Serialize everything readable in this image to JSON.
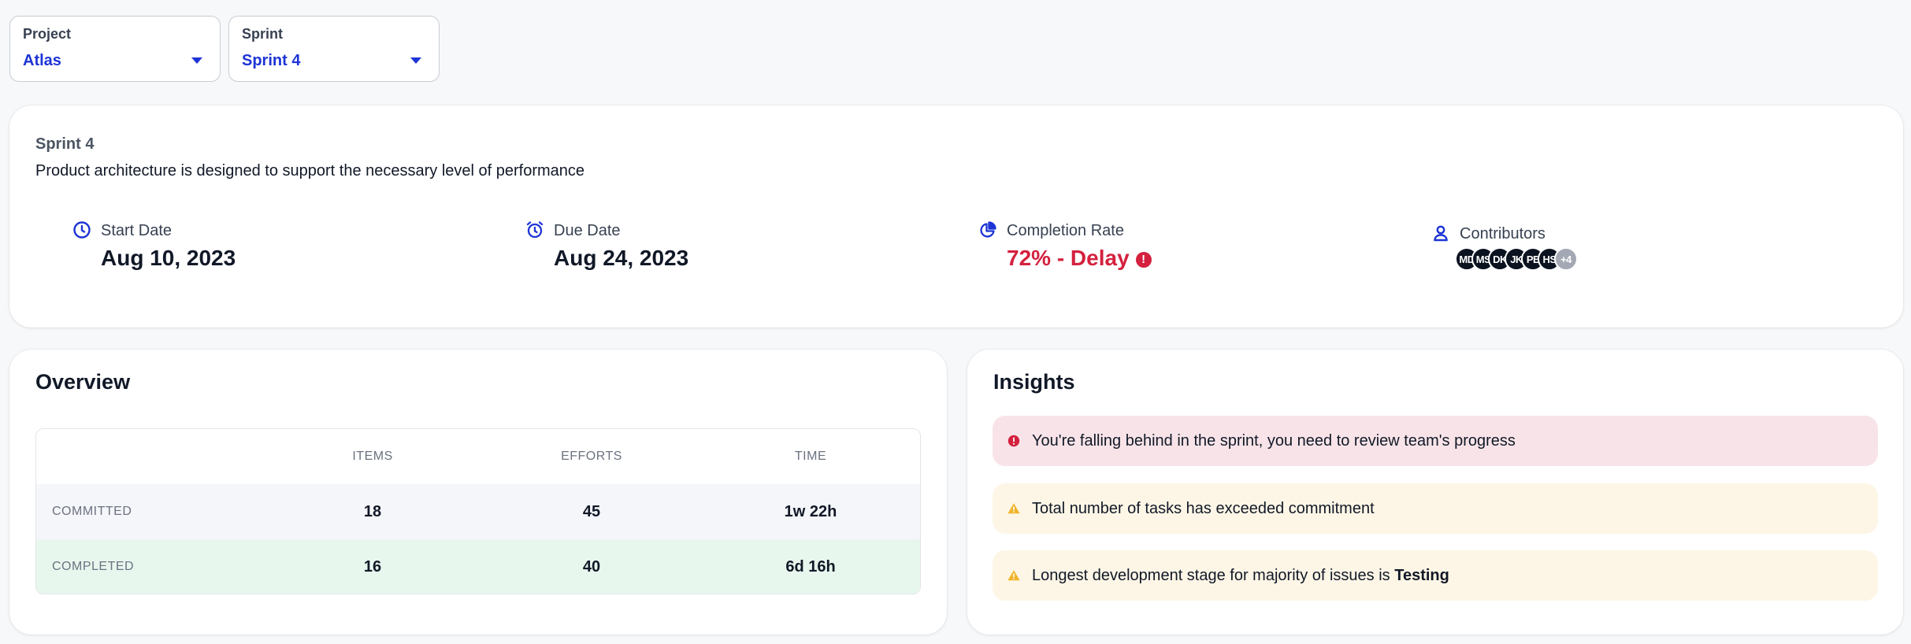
{
  "filters": {
    "project": {
      "label": "Project",
      "value": "Atlas"
    },
    "sprint": {
      "label": "Sprint",
      "value": "Sprint 4"
    }
  },
  "sprint": {
    "name": "Sprint 4",
    "description": "Product architecture is designed to support the necessary level of performance",
    "start": {
      "label": "Start Date",
      "value": "Aug 10, 2023",
      "icon": "clock-icon"
    },
    "due": {
      "label": "Due Date",
      "value": "Aug 24, 2023",
      "icon": "alarm-clock-icon"
    },
    "completion": {
      "label": "Completion Rate",
      "value": "72% - Delay",
      "icon": "pie-chart-icon",
      "alert": "!"
    },
    "contributors": {
      "label": "Contributors",
      "icon": "user-icon",
      "avatars": [
        "MD",
        "MS",
        "DK",
        "JK",
        "PE",
        "HS"
      ],
      "more": "+4"
    }
  },
  "overview": {
    "title": "Overview",
    "columns": [
      "ITEMS",
      "EFFORTS",
      "TIME"
    ],
    "rows": [
      {
        "label": "COMMITTED",
        "values": [
          "18",
          "45",
          "1w 22h"
        ]
      },
      {
        "label": "COMPLETED",
        "values": [
          "16",
          "40",
          "6d 16h"
        ]
      }
    ]
  },
  "insights": {
    "title": "Insights",
    "items": [
      {
        "type": "danger",
        "text": "You're falling behind in the sprint, you need to review team's progress"
      },
      {
        "type": "warning",
        "text": "Total number of tasks has exceeded commitment"
      },
      {
        "type": "warning",
        "text": "Longest development stage for majority of issues is ",
        "emphasis": "Testing"
      }
    ]
  },
  "colors": {
    "accent": "#1d34d6",
    "danger": "#d4213e",
    "warning": "#f0b429",
    "completed_row": "#e8f7ee",
    "danger_bg": "#f8e4e8",
    "warning_bg": "#fdf6e6"
  }
}
